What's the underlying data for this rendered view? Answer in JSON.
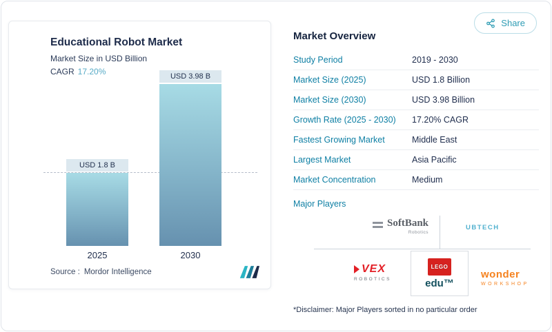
{
  "share": {
    "label": "Share"
  },
  "chart_card": {
    "title": "Educational Robot Market",
    "subtitle": "Market Size in USD Billion",
    "cagr_label": "CAGR",
    "cagr_value": "17.20%",
    "source_prefix": "Source :",
    "source_name": "Mordor Intelligence"
  },
  "chart_data": {
    "type": "bar",
    "title": "Educational Robot Market",
    "ylabel": "Market Size in USD Billion",
    "categories": [
      "2025",
      "2030"
    ],
    "values": [
      1.8,
      3.98
    ],
    "value_labels": [
      "USD 1.8 B",
      "USD 3.98 B"
    ],
    "ylim": [
      0,
      4.4
    ],
    "reference_line": 1.8,
    "cagr": "17.20%",
    "grid": false,
    "legend": "none"
  },
  "overview": {
    "title": "Market Overview",
    "rows": [
      {
        "label": "Study Period",
        "value": "2019 - 2030"
      },
      {
        "label": "Market Size (2025)",
        "value": "USD 1.8 Billion"
      },
      {
        "label": "Market Size (2030)",
        "value": "USD 3.98 Billion"
      },
      {
        "label": "Growth Rate (2025 - 2030)",
        "value": "17.20% CAGR"
      },
      {
        "label": "Fastest Growing Market",
        "value": "Middle East"
      },
      {
        "label": "Largest Market",
        "value": "Asia Pacific"
      },
      {
        "label": "Market Concentration",
        "value": "Medium"
      }
    ],
    "major_players_label": "Major Players",
    "major_players": {
      "softbank": {
        "name": "SoftBank",
        "sub": "Robotics"
      },
      "ubtech": {
        "name": "UBTECH"
      },
      "vex": {
        "name": "VEX",
        "sub": "ROBOTICS"
      },
      "lego": {
        "tile": "LEGO",
        "sub": "edu™"
      },
      "wonder": {
        "name": "wonder",
        "sub": "WORKSHOP"
      }
    },
    "disclaimer": "*Disclaimer: Major Players sorted in no particular order"
  },
  "colors": {
    "accent_teal": "#0e7fa4",
    "navy": "#1d2b4a",
    "bar_gradient_top": "#a7dbe5",
    "bar_gradient_bottom": "#6691af",
    "share_teal": "#2e9cb4",
    "lego_red": "#d6221f",
    "vex_red": "#e31f26",
    "wonder_orange": "#f5821f"
  }
}
